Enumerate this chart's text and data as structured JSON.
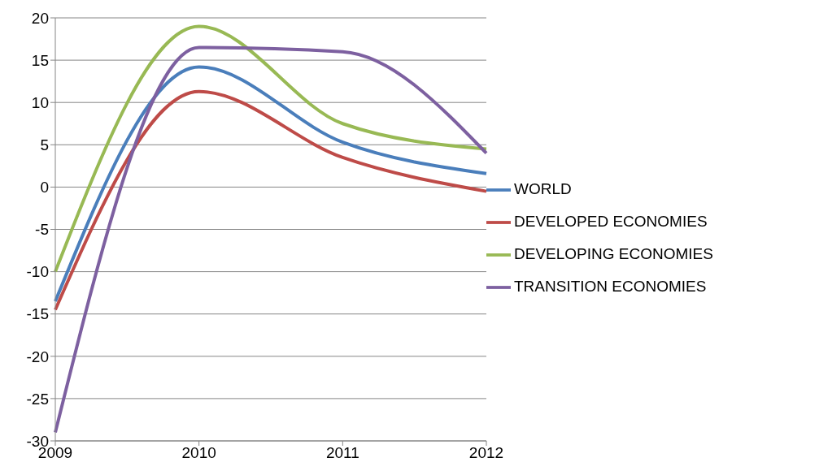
{
  "chart_data": {
    "type": "line",
    "categories": [
      "2009",
      "2010",
      "2011",
      "2012"
    ],
    "series": [
      {
        "name": "WORLD",
        "color": "#4a7ebb",
        "values": [
          -13.5,
          14.2,
          5.3,
          1.6
        ]
      },
      {
        "name": "DEVELOPED ECONOMIES",
        "color": "#be4b48",
        "values": [
          -14.5,
          11.3,
          3.5,
          -0.5
        ]
      },
      {
        "name": "DEVELOPING ECONOMIES",
        "color": "#98b954",
        "values": [
          -10,
          19,
          7.5,
          4.5
        ]
      },
      {
        "name": "TRANSITION ECONOMIES",
        "color": "#7d60a0",
        "values": [
          -29,
          16.5,
          16,
          4
        ]
      }
    ],
    "ylim": [
      -30,
      20
    ],
    "yticks": [
      -30,
      -25,
      -20,
      -15,
      -10,
      -5,
      0,
      5,
      10,
      15,
      20
    ],
    "grid": "y",
    "legend": "right",
    "marker": "none",
    "line_style": "solid"
  }
}
